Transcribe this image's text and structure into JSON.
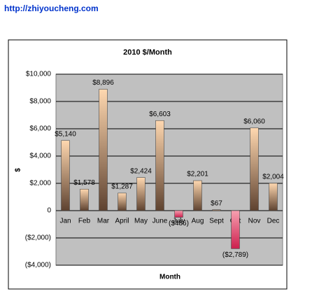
{
  "header": {
    "url": "http://zhiyoucheng.com"
  },
  "chart_data": {
    "type": "bar",
    "title": "2010 $/Month",
    "xlabel": "Month",
    "ylabel": "$",
    "categories": [
      "Jan",
      "Feb",
      "Mar",
      "April",
      "May",
      "June",
      "July",
      "Aug",
      "Sept",
      "Oct",
      "Nov",
      "Dec"
    ],
    "values": [
      5140,
      1578,
      8896,
      1287,
      2424,
      6603,
      -486,
      2201,
      67,
      -2789,
      6060,
      2004
    ],
    "value_labels": [
      "$5,140",
      "$1,578",
      "$8,896",
      "$1,287",
      "$2,424",
      "$6,603",
      "($486)",
      "$2,201",
      "$67",
      "($2,789)",
      "$6,060",
      "$2,004"
    ],
    "color": [
      "#ffd8b0",
      "#5e4230"
    ],
    "negative_color": [
      "#f7a0b0",
      "#cc1f4e"
    ],
    "negative_label_color": "#ff0000",
    "ylim": [
      -4000,
      10000
    ],
    "yticks": [
      {
        "value": -4000,
        "label": "($4,000)"
      },
      {
        "value": -2000,
        "label": "($2,000)"
      },
      0,
      {
        "value": 2000,
        "label": "$2,000"
      },
      {
        "value": 4000,
        "label": "$4,000"
      },
      {
        "value": 6000,
        "label": "$6,000"
      },
      {
        "value": 8000,
        "label": "$8,000"
      },
      {
        "value": 10000,
        "label": "$10,000"
      }
    ],
    "grid": true
  }
}
